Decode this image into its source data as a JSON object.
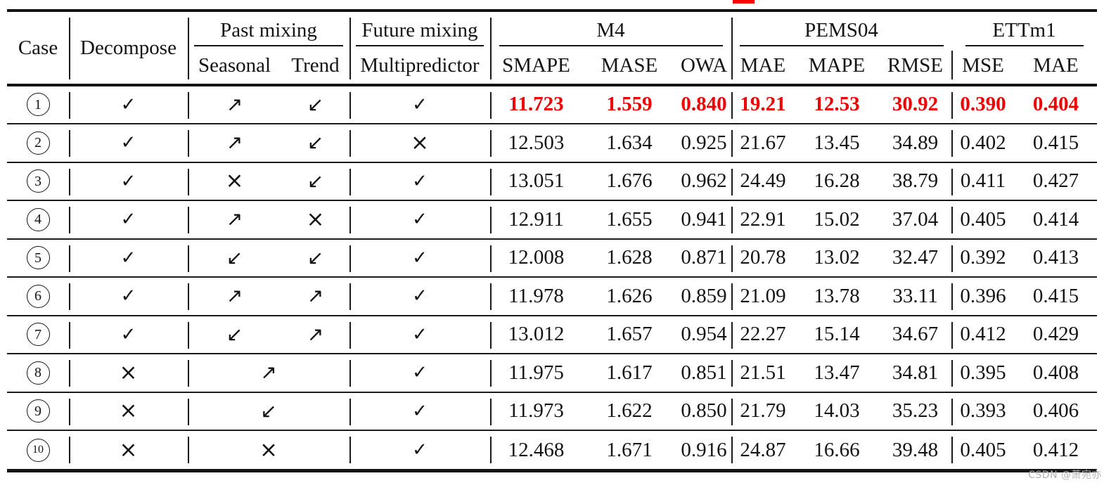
{
  "accent_red": "#ee0000",
  "fragment_red": "#ff0000",
  "watermark": "CSDN @萧宛亦",
  "header": {
    "case": "Case",
    "decompose": "Decompose",
    "past_mixing": "Past mixing",
    "future_mixing": "Future mixing",
    "seasonal": "Seasonal",
    "trend": "Trend",
    "multipredictor": "Multipredictor",
    "m4": "M4",
    "pems04": "PEMS04",
    "ettm1": "ETTm1",
    "m4_metrics": [
      "SMAPE",
      "MASE",
      "OWA"
    ],
    "pems04_metrics": [
      "MAE",
      "MAPE",
      "RMSE"
    ],
    "ettm1_metrics": [
      "MSE",
      "MAE"
    ]
  },
  "symbols": {
    "check": "✓",
    "cross": "×",
    "up": "↗",
    "down": "↙"
  },
  "rows": [
    {
      "case": "1",
      "decompose": "check",
      "seasonal": "up",
      "trend": "down",
      "multipredictor": "check",
      "highlight": true,
      "values": [
        "11.723",
        "1.559",
        "0.840",
        "19.21",
        "12.53",
        "30.92",
        "0.390",
        "0.404"
      ]
    },
    {
      "case": "2",
      "decompose": "check",
      "seasonal": "up",
      "trend": "down",
      "multipredictor": "cross",
      "values": [
        "12.503",
        "1.634",
        "0.925",
        "21.67",
        "13.45",
        "34.89",
        "0.402",
        "0.415"
      ]
    },
    {
      "case": "3",
      "decompose": "check",
      "seasonal": "cross",
      "trend": "down",
      "multipredictor": "check",
      "values": [
        "13.051",
        "1.676",
        "0.962",
        "24.49",
        "16.28",
        "38.79",
        "0.411",
        "0.427"
      ]
    },
    {
      "case": "4",
      "decompose": "check",
      "seasonal": "up",
      "trend": "cross",
      "multipredictor": "check",
      "values": [
        "12.911",
        "1.655",
        "0.941",
        "22.91",
        "15.02",
        "37.04",
        "0.405",
        "0.414"
      ]
    },
    {
      "case": "5",
      "decompose": "check",
      "seasonal": "down",
      "trend": "down",
      "multipredictor": "check",
      "values": [
        "12.008",
        "1.628",
        "0.871",
        "20.78",
        "13.02",
        "32.47",
        "0.392",
        "0.413"
      ]
    },
    {
      "case": "6",
      "decompose": "check",
      "seasonal": "up",
      "trend": "up",
      "multipredictor": "check",
      "values": [
        "11.978",
        "1.626",
        "0.859",
        "21.09",
        "13.78",
        "33.11",
        "0.396",
        "0.415"
      ]
    },
    {
      "case": "7",
      "decompose": "check",
      "seasonal": "down",
      "trend": "up",
      "multipredictor": "check",
      "values": [
        "13.012",
        "1.657",
        "0.954",
        "22.27",
        "15.14",
        "34.67",
        "0.412",
        "0.429"
      ]
    },
    {
      "case": "8",
      "decompose": "cross",
      "past_merged": "up",
      "multipredictor": "check",
      "values": [
        "11.975",
        "1.617",
        "0.851",
        "21.51",
        "13.47",
        "34.81",
        "0.395",
        "0.408"
      ]
    },
    {
      "case": "9",
      "decompose": "cross",
      "past_merged": "down",
      "multipredictor": "check",
      "values": [
        "11.973",
        "1.622",
        "0.850",
        "21.79",
        "14.03",
        "35.23",
        "0.393",
        "0.406"
      ]
    },
    {
      "case": "10",
      "decompose": "cross",
      "past_merged": "cross",
      "multipredictor": "check",
      "values": [
        "12.468",
        "1.671",
        "0.916",
        "24.87",
        "16.66",
        "39.48",
        "0.405",
        "0.412"
      ]
    }
  ]
}
